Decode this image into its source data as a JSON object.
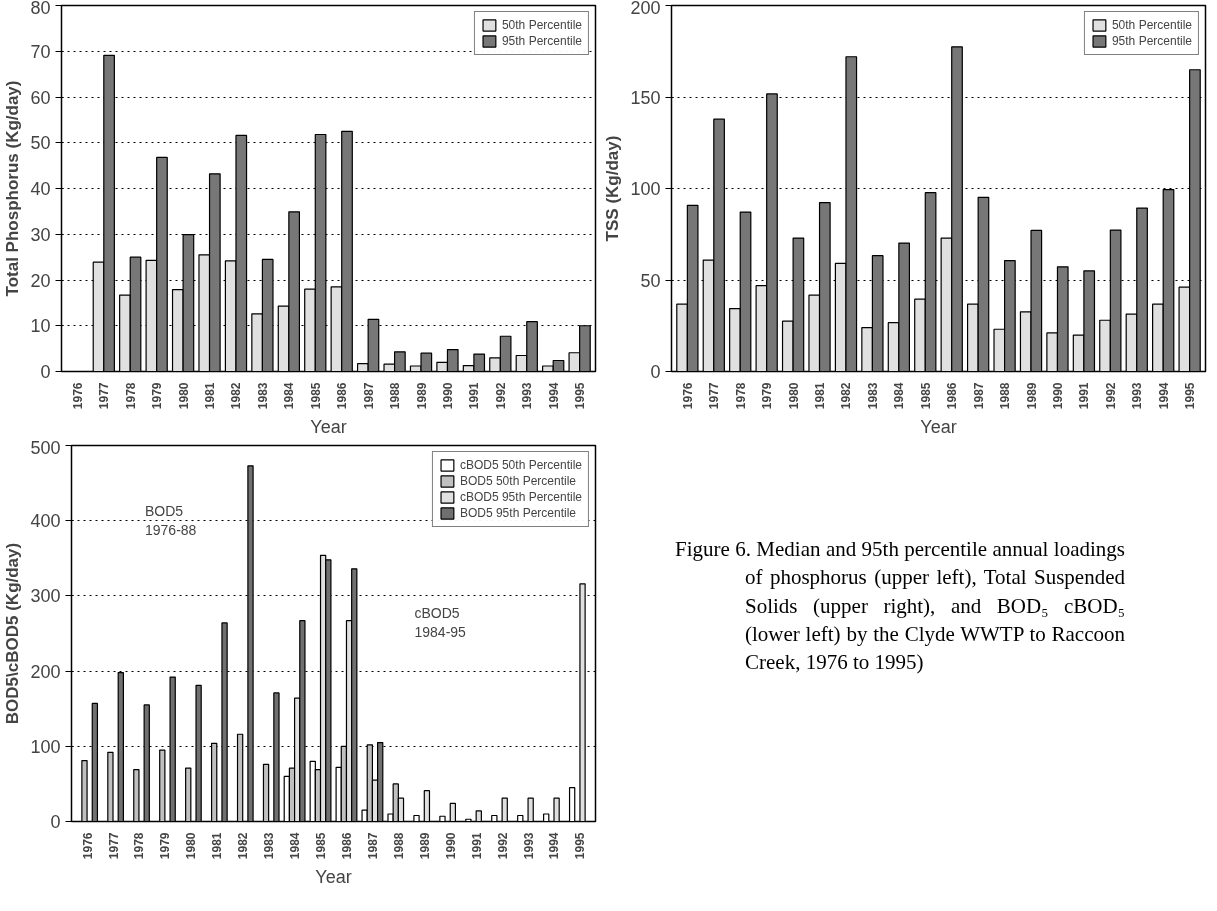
{
  "chart_data": [
    {
      "type": "bar",
      "xlabel": "Year",
      "ylabel": "Total Phosphorus (Kg/day)",
      "categories": [
        "1976",
        "1977",
        "1978",
        "1979",
        "1980",
        "1981",
        "1982",
        "1983",
        "1984",
        "1985",
        "1986",
        "1987",
        "1988",
        "1989",
        "1990",
        "1991",
        "1992",
        "1993",
        "1994",
        "1995"
      ],
      "series": [
        {
          "name": "50th Percentile",
          "color": "#e0e0e0",
          "values": [
            null,
            23.9,
            16.7,
            24.3,
            17.9,
            25.5,
            24.2,
            12.6,
            14.3,
            18.0,
            18.5,
            1.7,
            1.6,
            1.2,
            2.0,
            1.3,
            3.0,
            3.5,
            1.2,
            4.1
          ]
        },
        {
          "name": "95th Percentile",
          "color": "#777777",
          "values": [
            null,
            69.1,
            25.0,
            46.8,
            29.9,
            43.2,
            51.6,
            24.5,
            34.9,
            51.8,
            52.5,
            11.4,
            4.3,
            4.0,
            4.8,
            3.8,
            7.7,
            10.9,
            2.4,
            10.0
          ]
        }
      ],
      "ylim": [
        0,
        80
      ],
      "yticks": [
        0,
        10,
        20,
        30,
        40,
        50,
        60,
        70,
        80
      ],
      "grid": "y",
      "legend": "top right"
    },
    {
      "type": "bar",
      "xlabel": "Year",
      "ylabel": "TSS (Kg/day)",
      "categories": [
        "1976",
        "1977",
        "1978",
        "1979",
        "1980",
        "1981",
        "1982",
        "1983",
        "1984",
        "1985",
        "1986",
        "1987",
        "1988",
        "1989",
        "1990",
        "1991",
        "1992",
        "1993",
        "1994",
        "1995"
      ],
      "series": [
        {
          "name": "50th Percentile",
          "color": "#e0e0e0",
          "values": [
            36.8,
            60.9,
            34.4,
            46.9,
            27.5,
            41.7,
            59.1,
            24.0,
            26.7,
            39.5,
            72.9,
            36.8,
            23.1,
            32.6,
            21.1,
            19.9,
            28.0,
            31.4,
            36.8,
            46.1
          ]
        },
        {
          "name": "95th Percentile",
          "color": "#777777",
          "values": [
            90.8,
            137.9,
            87.1,
            151.7,
            72.9,
            92.3,
            172.0,
            63.3,
            70.2,
            97.7,
            177.4,
            95.2,
            60.6,
            77.1,
            57.2,
            55.0,
            77.3,
            89.3,
            99.4,
            164.9
          ]
        }
      ],
      "ylim": [
        0,
        200
      ],
      "yticks": [
        0,
        50,
        100,
        150,
        200
      ],
      "grid": "y",
      "legend": "top right"
    },
    {
      "type": "bar",
      "xlabel": "Year",
      "ylabel": "BOD5\\cBOD5 (Kg/day)",
      "categories": [
        "1976",
        "1977",
        "1978",
        "1979",
        "1980",
        "1981",
        "1982",
        "1983",
        "1984",
        "1985",
        "1986",
        "1987",
        "1988",
        "1989",
        "1990",
        "1991",
        "1992",
        "1993",
        "1994",
        "1995"
      ],
      "series": [
        {
          "name": "cBOD5 50th Percentile",
          "color": "#ffffff",
          "values": [
            null,
            null,
            null,
            null,
            null,
            null,
            null,
            null,
            60,
            80,
            72,
            15,
            10,
            8,
            7,
            3,
            8,
            8,
            10,
            45
          ]
        },
        {
          "name": "BOD5 50th Percentile",
          "color": "#c0c0c0",
          "values": [
            81,
            92,
            69,
            95,
            71,
            104,
            116,
            76,
            71,
            69,
            100,
            102,
            50,
            null,
            null,
            null,
            null,
            null,
            null,
            null
          ]
        },
        {
          "name": "cBOD5 95th Percentile",
          "color": "#e0e0e0",
          "values": [
            null,
            null,
            null,
            null,
            null,
            null,
            null,
            null,
            164,
            354,
            267,
            55,
            31,
            41,
            24,
            14,
            31,
            31,
            31,
            316
          ]
        },
        {
          "name": "BOD5 95th Percentile",
          "color": "#707070",
          "values": [
            157,
            198,
            155,
            192,
            181,
            264,
            473,
            171,
            267,
            348,
            336,
            105,
            null,
            null,
            null,
            null,
            null,
            null,
            null,
            null
          ]
        }
      ],
      "ylim": [
        0,
        500
      ],
      "yticks": [
        0,
        100,
        200,
        300,
        400,
        500
      ],
      "grid": "y",
      "legend": "top right",
      "annotations": [
        "BOD5\n1976-88",
        "cBOD5\n1984-95"
      ]
    },
    {
      "type": "other",
      "annotations": [
        "Figure 6.  Median and 95th percentile annual loadings of phosphorus (upper left), Total Suspended Solids (upper right), and BOD₅ cBOD₅ (lower left) by the Clyde WWTP to Raccoon Creek, 1976 to 1995)"
      ]
    }
  ]
}
